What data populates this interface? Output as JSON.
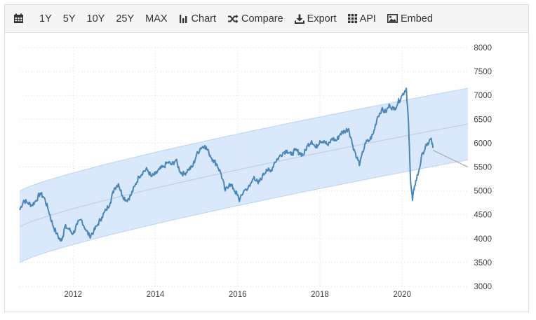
{
  "toolbar": {
    "calendar_icon": "calendar-icon",
    "ranges": [
      "1Y",
      "5Y",
      "10Y",
      "25Y",
      "MAX"
    ],
    "chart_label": "Chart",
    "compare_label": "Compare",
    "export_label": "Export",
    "api_label": "API",
    "embed_label": "Embed"
  },
  "chart_data": {
    "type": "line",
    "title": "",
    "xlabel": "",
    "ylabel": "",
    "ylim": [
      3000,
      8000
    ],
    "xlim": [
      2010.7,
      2021.6
    ],
    "y_ticks": [
      3000,
      3500,
      4000,
      4500,
      5000,
      5500,
      6000,
      6500,
      7000,
      7500,
      8000
    ],
    "x_ticks": [
      2012,
      2014,
      2016,
      2018,
      2020
    ],
    "x_tick_labels": [
      "2012",
      "2014",
      "2016",
      "2018",
      "2020"
    ],
    "grid": true,
    "legend": "none",
    "colors": {
      "line": "#4a86b8",
      "band_fill": "#d6e6fb",
      "band_edge": "#b9d3f3",
      "trend": "#c4d2e4",
      "forecast": "#b0b0b0"
    },
    "series": [
      {
        "x": [
          2010.7,
          2010.8,
          2010.9,
          2011.0,
          2011.1,
          2011.2,
          2011.3,
          2011.4,
          2011.5,
          2011.6,
          2011.7,
          2011.75,
          2011.8,
          2011.9,
          2012.0,
          2012.1,
          2012.2,
          2012.3,
          2012.4,
          2012.5,
          2012.6,
          2012.7,
          2012.8,
          2012.9,
          2013.0,
          2013.1,
          2013.2,
          2013.3,
          2013.4,
          2013.5,
          2013.6,
          2013.7,
          2013.8,
          2013.9,
          2014.0,
          2014.1,
          2014.2,
          2014.3,
          2014.4,
          2014.5,
          2014.6,
          2014.7,
          2014.8,
          2014.9,
          2015.0,
          2015.1,
          2015.2,
          2015.3,
          2015.4,
          2015.5,
          2015.6,
          2015.7,
          2015.8,
          2015.9,
          2016.0,
          2016.05,
          2016.15,
          2016.3,
          2016.4,
          2016.5,
          2016.6,
          2016.7,
          2016.8,
          2016.9,
          2017.0,
          2017.1,
          2017.2,
          2017.3,
          2017.4,
          2017.5,
          2017.6,
          2017.7,
          2017.8,
          2017.9,
          2018.0,
          2018.1,
          2018.2,
          2018.3,
          2018.4,
          2018.5,
          2018.6,
          2018.7,
          2018.8,
          2018.9,
          2018.97,
          2019.1,
          2019.2,
          2019.3,
          2019.4,
          2019.5,
          2019.6,
          2019.7,
          2019.8,
          2019.9,
          2020.0,
          2020.1,
          2020.15,
          2020.2,
          2020.25,
          2020.3,
          2020.4,
          2020.5,
          2020.6,
          2020.7,
          2020.75
        ],
        "values": [
          4600,
          4800,
          4750,
          4700,
          4800,
          4950,
          4850,
          4600,
          4300,
          4100,
          3950,
          4050,
          4250,
          4200,
          4100,
          4300,
          4400,
          4200,
          4050,
          4150,
          4300,
          4450,
          4600,
          4750,
          5050,
          5150,
          4900,
          4800,
          4900,
          5100,
          5300,
          5400,
          5450,
          5300,
          5350,
          5450,
          5500,
          5600,
          5550,
          5650,
          5400,
          5350,
          5450,
          5500,
          5750,
          5900,
          5950,
          5800,
          5650,
          5550,
          5350,
          5000,
          5150,
          5050,
          4900,
          4800,
          5000,
          5100,
          5300,
          5150,
          5300,
          5450,
          5400,
          5600,
          5700,
          5800,
          5850,
          5750,
          5850,
          5800,
          5750,
          5950,
          6050,
          5900,
          6050,
          6050,
          5950,
          6100,
          6050,
          6200,
          6250,
          6300,
          5950,
          5700,
          5550,
          6000,
          6050,
          6200,
          6550,
          6700,
          6650,
          6800,
          6700,
          6850,
          7000,
          7150,
          6500,
          5300,
          4800,
          5100,
          5400,
          5800,
          5950,
          6100,
          5900
        ]
      }
    ],
    "trend_line": {
      "x": [
        2010.7,
        2021.6
      ],
      "values": [
        4250,
        6400
      ]
    },
    "band_upper": {
      "x": [
        2010.7,
        2021.6
      ],
      "values": [
        5000,
        7150
      ]
    },
    "band_lower": {
      "x": [
        2010.7,
        2021.6
      ],
      "values": [
        3500,
        5650
      ]
    },
    "forecast_line": {
      "x": [
        2020.75,
        2021.6
      ],
      "values": [
        5850,
        5500
      ]
    }
  }
}
